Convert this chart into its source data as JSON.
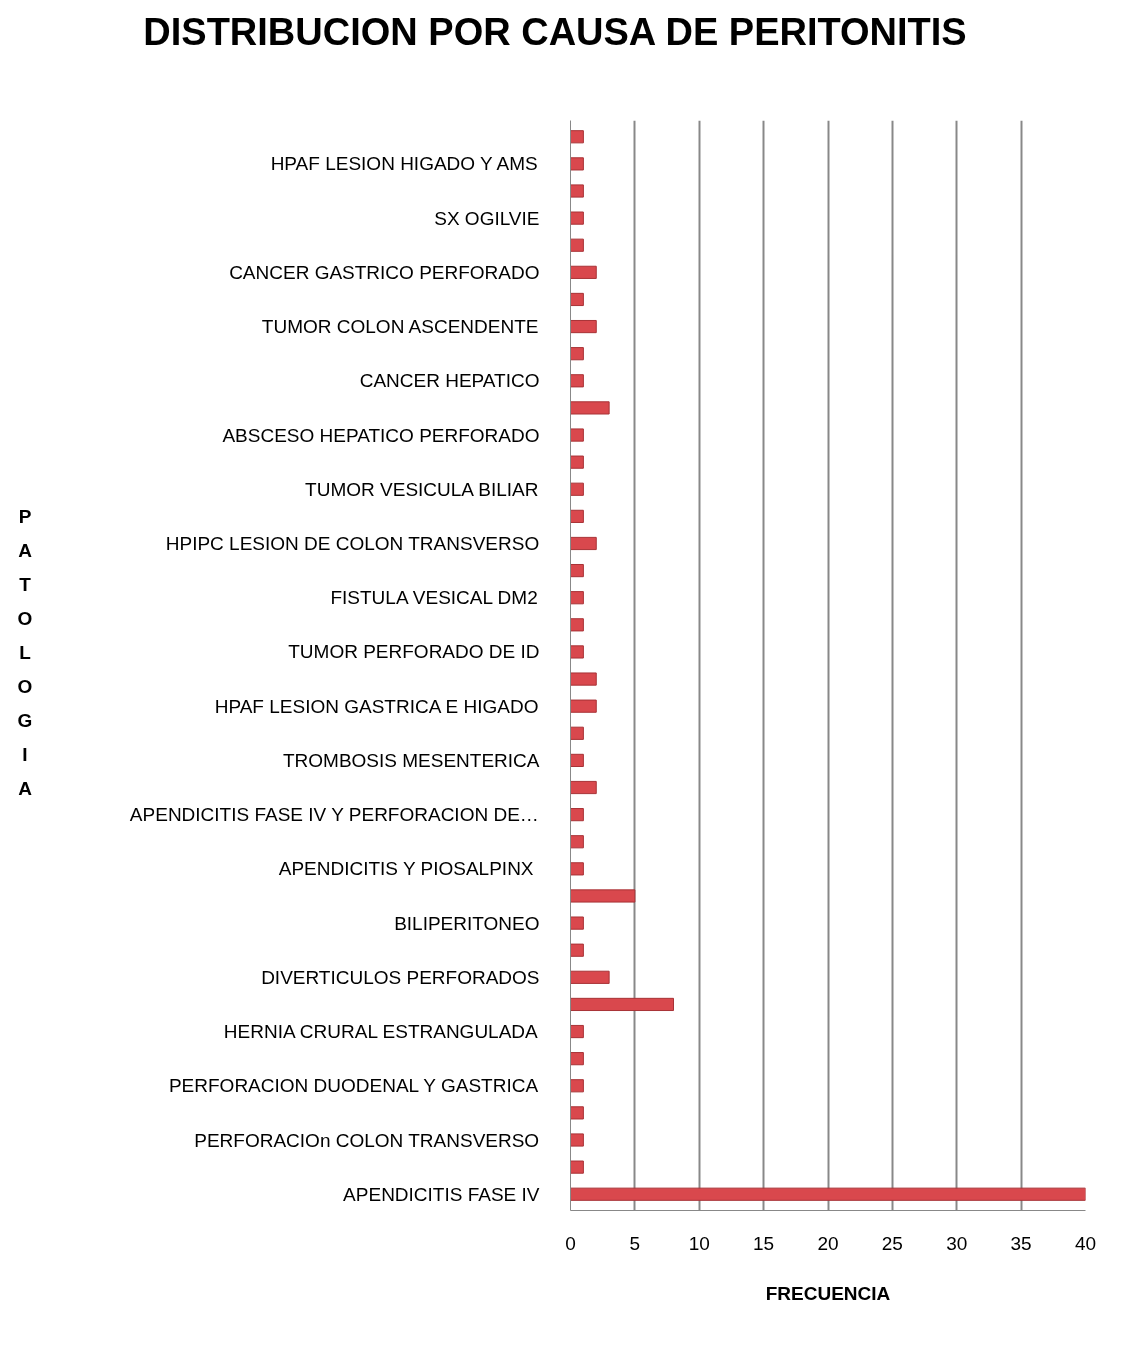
{
  "chart_data": {
    "type": "bar",
    "orientation": "horizontal",
    "title": "DISTRIBUCION POR CAUSA DE PERITONITIS",
    "xlabel": "FRECUENCIA",
    "ylabel": "PATOLOGIA",
    "categories": [
      null,
      "HPAF LESION HIGADO Y AMS",
      null,
      "SX OGILVIE",
      null,
      "CANCER GASTRICO PERFORADO",
      null,
      "TUMOR COLON ASCENDENTE",
      null,
      "CANCER HEPATICO",
      null,
      "ABSCESO HEPATICO PERFORADO",
      null,
      "TUMOR VESICULA BILIAR",
      null,
      "HPIPC LESION DE COLON TRANSVERSO",
      null,
      "FISTULA VESICAL DM2",
      null,
      "TUMOR PERFORADO DE ID",
      null,
      "HPAF LESION GASTRICA E HIGADO",
      null,
      "TROMBOSIS MESENTERICA",
      null,
      "APENDICITIS FASE IV Y PERFORACION DE…",
      null,
      "APENDICITIS  Y PIOSALPINX",
      null,
      "BILIPERITONEO",
      null,
      "DIVERTICULOS PERFORADOS",
      null,
      "HERNIA CRURAL ESTRANGULADA",
      null,
      "PERFORACION DUODENAL Y GASTRICA",
      null,
      "PERFORACIOn COLON TRANSVERSO",
      null,
      "APENDICITIS FASE IV"
    ],
    "values": [
      1,
      1,
      1,
      1,
      1,
      2,
      1,
      2,
      1,
      1,
      3,
      1,
      1,
      1,
      1,
      2,
      1,
      1,
      1,
      1,
      2,
      2,
      1,
      1,
      2,
      1,
      1,
      1,
      5,
      1,
      1,
      3,
      8,
      1,
      1,
      1,
      1,
      1,
      1,
      40
    ],
    "color": "#d9484d",
    "xlim": [
      0,
      40
    ],
    "xticks": [
      0,
      5,
      10,
      15,
      20,
      25,
      30,
      35,
      40
    ],
    "grid": "x"
  }
}
